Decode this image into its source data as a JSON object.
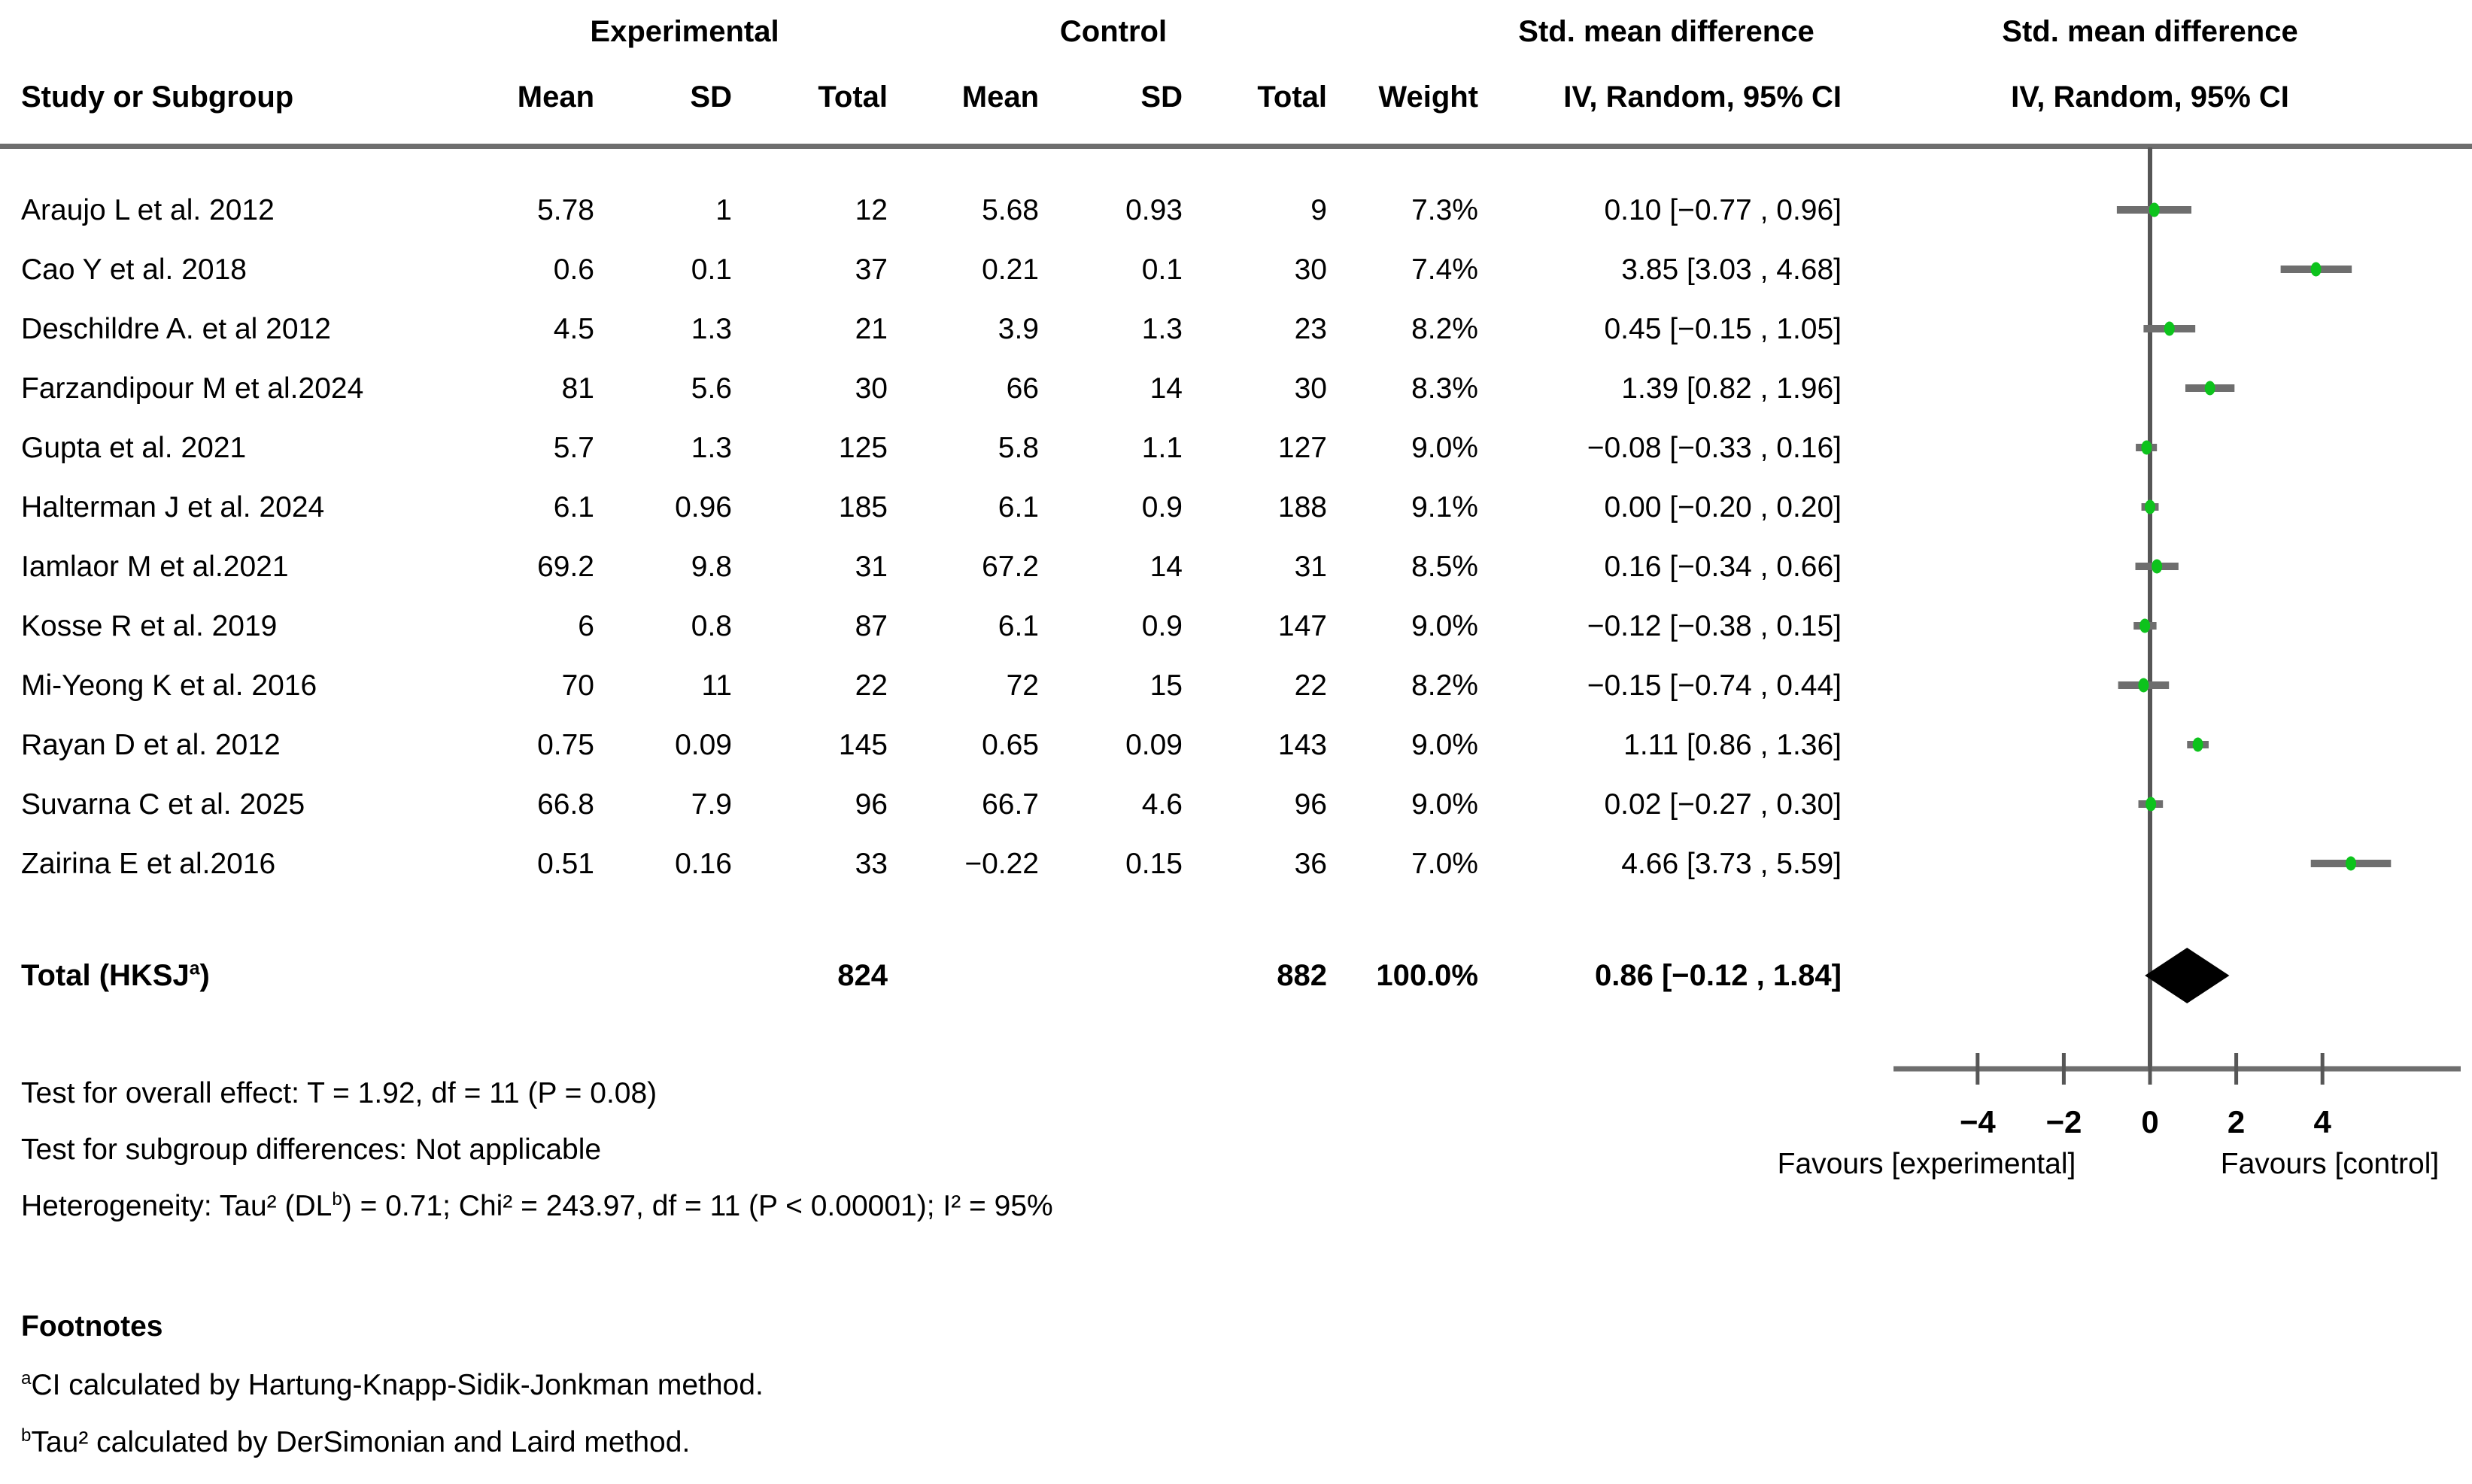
{
  "header": {
    "group_experimental": "Experimental",
    "group_control": "Control",
    "smd_left": "Std. mean difference",
    "smd_right": "Std. mean difference",
    "col_study": "Study or Subgroup",
    "col_mean1": "Mean",
    "col_sd1": "SD",
    "col_total1": "Total",
    "col_mean2": "Mean",
    "col_sd2": "SD",
    "col_total2": "Total",
    "col_weight": "Weight",
    "col_ci_left": "IV, Random, 95% CI",
    "col_ci_right": "IV, Random, 95% CI"
  },
  "stats": {
    "overall_effect": "Test for overall effect: T = 1.92, df = 11 (P = 0.08)",
    "subgroup": "Test for subgroup differences: Not applicable",
    "heterogeneity_pre": "Heterogeneity: Tau² (DL",
    "heterogeneity_sup": "b",
    "heterogeneity_post": ") = 0.71; Chi² = 243.97, df = 11 (P < 0.00001); I² = 95%"
  },
  "footnotes": {
    "title": "Footnotes",
    "a_sup": "a",
    "a_text": "CI calculated by Hartung-Knapp-Sidik-Jonkman method.",
    "b_sup": "b",
    "b_text": "Tau² calculated by DerSimonian and Laird method."
  },
  "colors": {
    "marker_green": "#0dc31c",
    "line_gray": "#6e6e6e",
    "zero_line": "#565656",
    "diamond": "#000000"
  },
  "chart_data": {
    "type": "forest",
    "effect_measure": "Std. mean difference, IV, Random, 95% CI",
    "x_axis": {
      "ticks": [
        -4,
        -2,
        0,
        2,
        4
      ],
      "tick_labels": [
        "−4",
        "−2",
        "0",
        "2",
        "4"
      ],
      "range": [
        -5.95,
        7.2
      ],
      "favours_left": "Favours [experimental]",
      "favours_right": "Favours [control]"
    },
    "studies": [
      {
        "name": "Araujo L et al. 2012",
        "m1": "5.78",
        "s1": "1",
        "t1": "12",
        "m2": "5.68",
        "s2": "0.93",
        "t2": "9",
        "w": "7.3%",
        "ci": "0.10 [−0.77 , 0.96]",
        "est": 0.1,
        "lo": -0.77,
        "hi": 0.96
      },
      {
        "name": "Cao Y et al. 2018",
        "m1": "0.6",
        "s1": "0.1",
        "t1": "37",
        "m2": "0.21",
        "s2": "0.1",
        "t2": "30",
        "w": "7.4%",
        "ci": "3.85 [3.03 , 4.68]",
        "est": 3.85,
        "lo": 3.03,
        "hi": 4.68
      },
      {
        "name": "Deschildre A. et al 2012",
        "m1": "4.5",
        "s1": "1.3",
        "t1": "21",
        "m2": "3.9",
        "s2": "1.3",
        "t2": "23",
        "w": "8.2%",
        "ci": "0.45 [−0.15 , 1.05]",
        "est": 0.45,
        "lo": -0.15,
        "hi": 1.05
      },
      {
        "name": "Farzandipour M et al.2024",
        "m1": "81",
        "s1": "5.6",
        "t1": "30",
        "m2": "66",
        "s2": "14",
        "t2": "30",
        "w": "8.3%",
        "ci": "1.39 [0.82 , 1.96]",
        "est": 1.39,
        "lo": 0.82,
        "hi": 1.96
      },
      {
        "name": "Gupta et al. 2021",
        "m1": "5.7",
        "s1": "1.3",
        "t1": "125",
        "m2": "5.8",
        "s2": "1.1",
        "t2": "127",
        "w": "9.0%",
        "ci": "−0.08 [−0.33 , 0.16]",
        "est": -0.08,
        "lo": -0.33,
        "hi": 0.16
      },
      {
        "name": "Halterman J et al. 2024",
        "m1": "6.1",
        "s1": "0.96",
        "t1": "185",
        "m2": "6.1",
        "s2": "0.9",
        "t2": "188",
        "w": "9.1%",
        "ci": "0.00 [−0.20 , 0.20]",
        "est": 0.0,
        "lo": -0.2,
        "hi": 0.2
      },
      {
        "name": "Iamlaor M et al.2021",
        "m1": "69.2",
        "s1": "9.8",
        "t1": "31",
        "m2": "67.2",
        "s2": "14",
        "t2": "31",
        "w": "8.5%",
        "ci": "0.16 [−0.34 , 0.66]",
        "est": 0.16,
        "lo": -0.34,
        "hi": 0.66
      },
      {
        "name": "Kosse R et al. 2019",
        "m1": "6",
        "s1": "0.8",
        "t1": "87",
        "m2": "6.1",
        "s2": "0.9",
        "t2": "147",
        "w": "9.0%",
        "ci": "−0.12 [−0.38 , 0.15]",
        "est": -0.12,
        "lo": -0.38,
        "hi": 0.15
      },
      {
        "name": "Mi-Yeong K et al. 2016",
        "m1": "70",
        "s1": "11",
        "t1": "22",
        "m2": "72",
        "s2": "15",
        "t2": "22",
        "w": "8.2%",
        "ci": "−0.15 [−0.74 , 0.44]",
        "est": -0.15,
        "lo": -0.74,
        "hi": 0.44
      },
      {
        "name": "Rayan D et al. 2012",
        "m1": "0.75",
        "s1": "0.09",
        "t1": "145",
        "m2": "0.65",
        "s2": "0.09",
        "t2": "143",
        "w": "9.0%",
        "ci": "1.11 [0.86 , 1.36]",
        "est": 1.11,
        "lo": 0.86,
        "hi": 1.36
      },
      {
        "name": "Suvarna C et al. 2025",
        "m1": "66.8",
        "s1": "7.9",
        "t1": "96",
        "m2": "66.7",
        "s2": "4.6",
        "t2": "96",
        "w": "9.0%",
        "ci": "0.02 [−0.27 , 0.30]",
        "est": 0.02,
        "lo": -0.27,
        "hi": 0.3
      },
      {
        "name": "Zairina E et al.2016",
        "m1": "0.51",
        "s1": "0.16",
        "t1": "33",
        "m2": "−0.22",
        "s2": "0.15",
        "t2": "36",
        "w": "7.0%",
        "ci": "4.66 [3.73 , 5.59]",
        "est": 4.66,
        "lo": 3.73,
        "hi": 5.59
      }
    ],
    "total": {
      "label_main": "Total (HKSJ",
      "label_sup": "a",
      "label_close": ")",
      "t1": "824",
      "t2": "882",
      "w": "100.0%",
      "ci": "0.86 [−0.12 , 1.84]",
      "est": 0.86,
      "lo": -0.12,
      "hi": 1.84
    }
  }
}
